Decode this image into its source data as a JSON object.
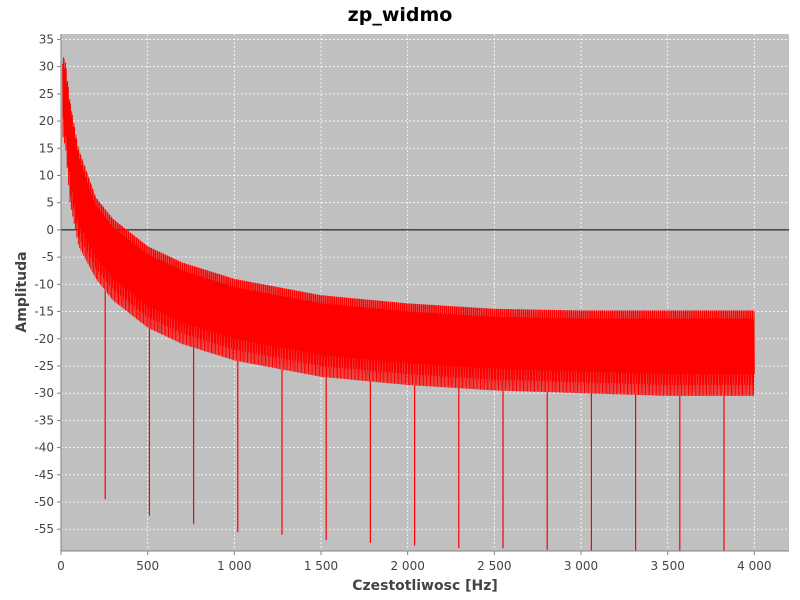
{
  "chart_data": {
    "type": "line",
    "title": "zp_widmo",
    "xlabel": "Czestotliwosc [Hz]",
    "ylabel": "Amplituda",
    "xlim": [
      0,
      4200
    ],
    "ylim": [
      -59,
      36
    ],
    "xticks": [
      {
        "value": 0,
        "label": "0"
      },
      {
        "value": 500,
        "label": "500"
      },
      {
        "value": 1000,
        "label": "1 000"
      },
      {
        "value": 1500,
        "label": "1 500"
      },
      {
        "value": 2000,
        "label": "2 000"
      },
      {
        "value": 2500,
        "label": "2 500"
      },
      {
        "value": 3000,
        "label": "3 000"
      },
      {
        "value": 3500,
        "label": "3 500"
      },
      {
        "value": 4000,
        "label": "4 000"
      }
    ],
    "yticks": [
      {
        "value": 35,
        "label": "35"
      },
      {
        "value": 30,
        "label": "30"
      },
      {
        "value": 25,
        "label": "25"
      },
      {
        "value": 20,
        "label": "20"
      },
      {
        "value": 15,
        "label": "15"
      },
      {
        "value": 10,
        "label": "10"
      },
      {
        "value": 5,
        "label": "5"
      },
      {
        "value": 0,
        "label": "0"
      },
      {
        "value": -5,
        "label": "-5"
      },
      {
        "value": -10,
        "label": "-10"
      },
      {
        "value": -15,
        "label": "-15"
      },
      {
        "value": -20,
        "label": "-20"
      },
      {
        "value": -25,
        "label": "-25"
      },
      {
        "value": -30,
        "label": "-30"
      },
      {
        "value": -35,
        "label": "-35"
      },
      {
        "value": -40,
        "label": "-40"
      },
      {
        "value": -45,
        "label": "-45"
      },
      {
        "value": -50,
        "label": "-50"
      },
      {
        "value": -55,
        "label": "-55"
      }
    ],
    "grid": true,
    "zero_line": true,
    "colors": {
      "series": "#ff0000",
      "plot_background": "#c0c0c0",
      "grid": "#ffffff"
    },
    "series": [
      {
        "upper_envelope": [
          [
            10,
            32
          ],
          [
            25,
            31
          ],
          [
            50,
            24
          ],
          [
            100,
            15
          ],
          [
            200,
            6
          ],
          [
            300,
            2
          ],
          [
            500,
            -3
          ],
          [
            700,
            -6
          ],
          [
            1000,
            -9
          ],
          [
            1500,
            -12
          ],
          [
            2000,
            -13.5
          ],
          [
            2500,
            -14.5
          ],
          [
            3000,
            -14.8
          ],
          [
            3500,
            -14.8
          ],
          [
            4000,
            -14.8
          ]
        ],
        "lower_envelope": [
          [
            10,
            17
          ],
          [
            25,
            15
          ],
          [
            50,
            5
          ],
          [
            100,
            -3
          ],
          [
            200,
            -9
          ],
          [
            300,
            -13
          ],
          [
            500,
            -18
          ],
          [
            700,
            -21
          ],
          [
            1000,
            -24
          ],
          [
            1500,
            -27
          ],
          [
            2000,
            -28.5
          ],
          [
            2500,
            -29.5
          ],
          [
            3000,
            -30
          ],
          [
            3500,
            -30.5
          ],
          [
            4000,
            -30.5
          ]
        ],
        "notches": [
          [
            255,
            -49.5
          ],
          [
            510,
            -52.5
          ],
          [
            765,
            -54
          ],
          [
            1020,
            -55.5
          ],
          [
            1275,
            -56
          ],
          [
            1530,
            -57
          ],
          [
            1785,
            -57.5
          ],
          [
            2040,
            -58
          ],
          [
            2295,
            -58.5
          ],
          [
            2550,
            -58.5
          ],
          [
            2805,
            -58.8
          ],
          [
            3060,
            -59
          ],
          [
            3315,
            -59
          ],
          [
            3570,
            -59
          ],
          [
            3825,
            -59
          ]
        ]
      }
    ]
  }
}
